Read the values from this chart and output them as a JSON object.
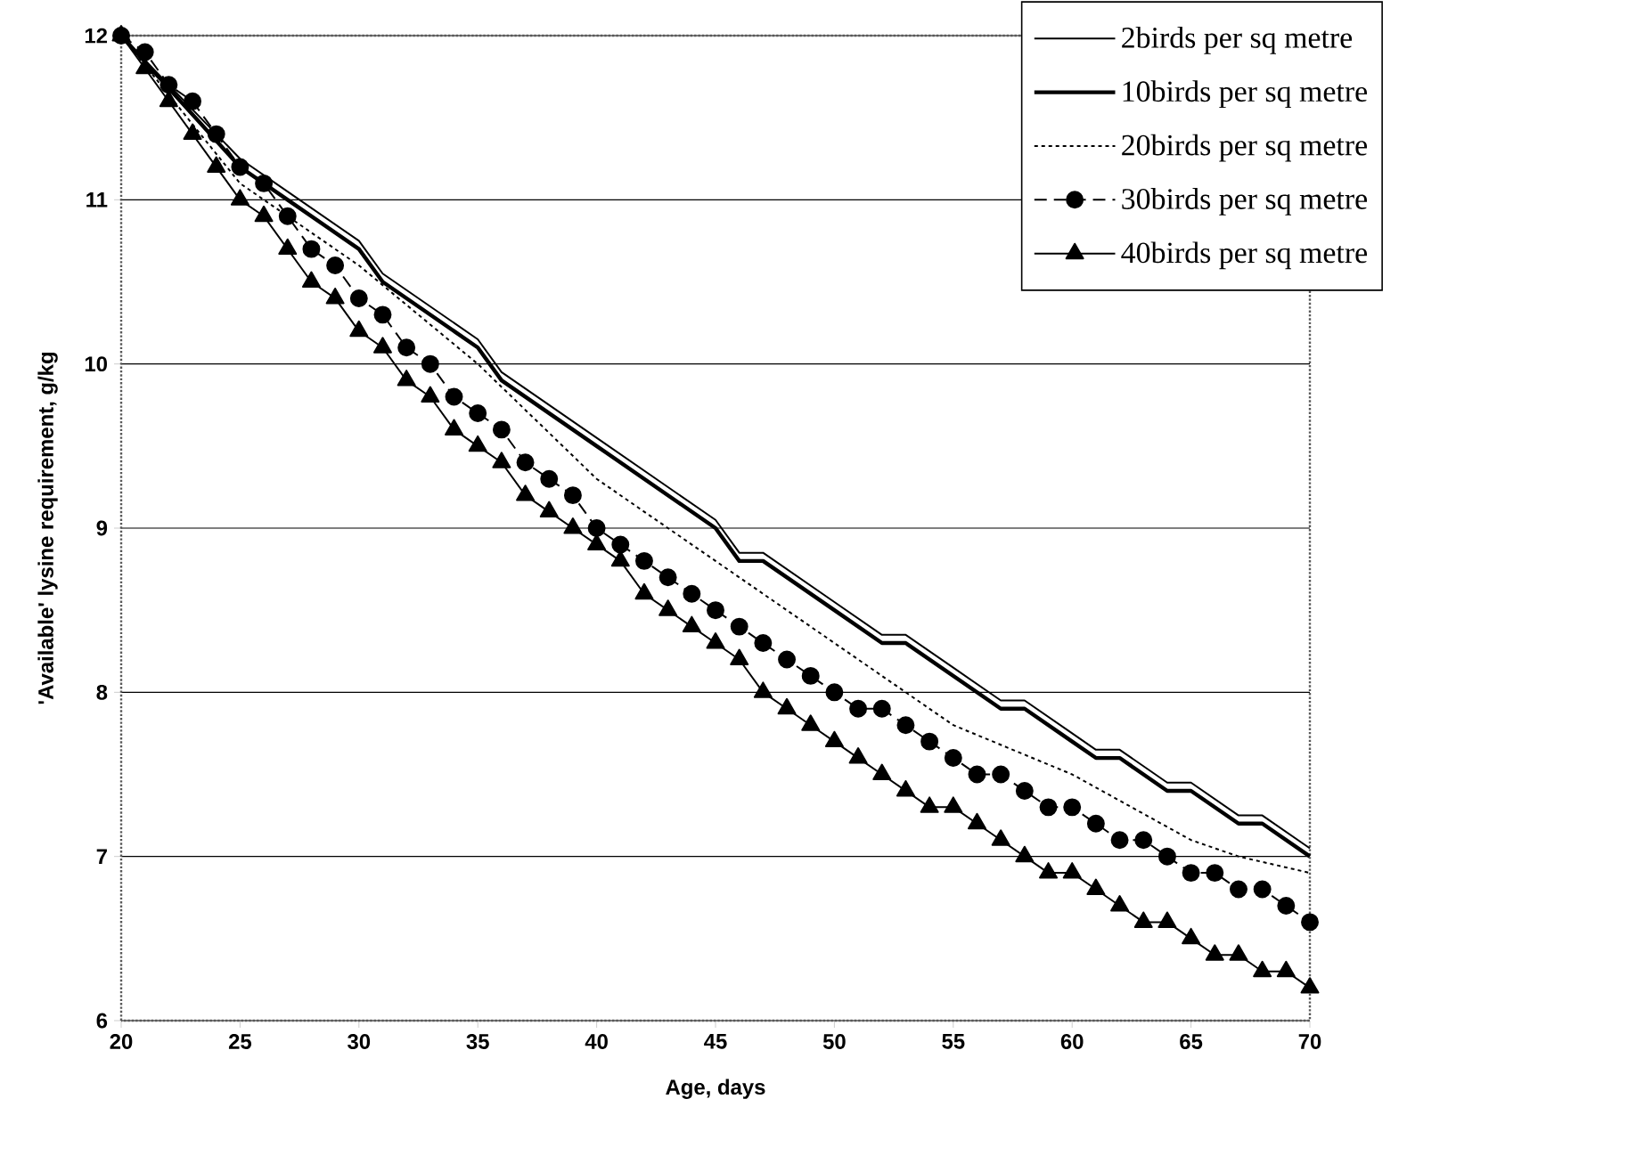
{
  "chart_data": {
    "type": "line",
    "xlabel": "Age, days",
    "ylabel": "'Available' lysine requirement, g/kg",
    "x": [
      20,
      21,
      22,
      23,
      24,
      25,
      26,
      27,
      28,
      29,
      30,
      31,
      32,
      33,
      34,
      35,
      36,
      37,
      38,
      39,
      40,
      41,
      42,
      43,
      44,
      45,
      46,
      47,
      48,
      49,
      50,
      51,
      52,
      53,
      54,
      55,
      56,
      57,
      58,
      59,
      60,
      61,
      62,
      63,
      64,
      65,
      66,
      67,
      68,
      69,
      70
    ],
    "xlim": [
      20,
      70
    ],
    "xticks": [
      20,
      25,
      30,
      35,
      40,
      45,
      50,
      55,
      60,
      65,
      70
    ],
    "ylim": [
      6,
      12
    ],
    "yticks": [
      6,
      7,
      8,
      9,
      10,
      11,
      12
    ],
    "grid": "y",
    "legend": "top right",
    "series": [
      {
        "name": "2birds per sq metre",
        "color": "#000000",
        "marker": "none",
        "line_style": "solid",
        "x": [
          20,
          25,
          27,
          30,
          31,
          35,
          36,
          40,
          45,
          46,
          47,
          50,
          52,
          53,
          55,
          57,
          58,
          60,
          61,
          62,
          64,
          65,
          67,
          68,
          70
        ],
        "values": [
          12.0,
          11.25,
          11.05,
          10.75,
          10.55,
          10.15,
          9.95,
          9.55,
          9.05,
          8.85,
          8.85,
          8.55,
          8.35,
          8.35,
          8.15,
          7.95,
          7.95,
          7.75,
          7.65,
          7.65,
          7.45,
          7.45,
          7.25,
          7.25,
          7.05
        ]
      },
      {
        "name": "10birds per sq metre",
        "color": "#000000",
        "marker": "none",
        "line_style": "solid",
        "x": [
          20,
          25,
          27,
          30,
          31,
          35,
          36,
          40,
          45,
          46,
          47,
          50,
          52,
          53,
          55,
          57,
          58,
          60,
          61,
          62,
          64,
          65,
          67,
          68,
          70
        ],
        "values": [
          12.0,
          11.2,
          11.0,
          10.7,
          10.5,
          10.1,
          9.9,
          9.5,
          9.0,
          8.8,
          8.8,
          8.5,
          8.3,
          8.3,
          8.1,
          7.9,
          7.9,
          7.7,
          7.6,
          7.6,
          7.4,
          7.4,
          7.2,
          7.2,
          7.0
        ]
      },
      {
        "name": "20birds per sq metre",
        "color": "#000000",
        "marker": "none",
        "line_style": "dotted",
        "x": [
          20,
          25,
          30,
          35,
          40,
          45,
          50,
          52,
          53,
          55,
          60,
          65,
          67,
          70
        ],
        "values": [
          12.0,
          11.1,
          10.6,
          10.0,
          9.3,
          8.8,
          8.3,
          8.1,
          8.0,
          7.8,
          7.5,
          7.1,
          7.0,
          6.9
        ]
      },
      {
        "name": "30birds per sq metre",
        "color": "#000000",
        "marker": "circle",
        "line_style": "dashed",
        "values": [
          12.0,
          11.9,
          11.7,
          11.6,
          11.4,
          11.2,
          11.1,
          10.9,
          10.7,
          10.6,
          10.4,
          10.3,
          10.1,
          10.0,
          9.8,
          9.7,
          9.6,
          9.4,
          9.3,
          9.2,
          9.0,
          8.9,
          8.8,
          8.7,
          8.6,
          8.5,
          8.4,
          8.3,
          8.2,
          8.1,
          8.0,
          7.9,
          7.9,
          7.8,
          7.7,
          7.6,
          7.5,
          7.5,
          7.4,
          7.3,
          7.3,
          7.2,
          7.1,
          7.1,
          7.0,
          6.9,
          6.9,
          6.8,
          6.8,
          6.7,
          6.6
        ]
      },
      {
        "name": "40birds per sq metre",
        "color": "#000000",
        "marker": "triangle",
        "line_style": "solid",
        "values": [
          12.0,
          11.8,
          11.6,
          11.4,
          11.2,
          11.0,
          10.9,
          10.7,
          10.5,
          10.4,
          10.2,
          10.1,
          9.9,
          9.8,
          9.6,
          9.5,
          9.4,
          9.2,
          9.1,
          9.0,
          8.9,
          8.8,
          8.6,
          8.5,
          8.4,
          8.3,
          8.2,
          8.0,
          7.9,
          7.8,
          7.7,
          7.6,
          7.5,
          7.4,
          7.3,
          7.3,
          7.2,
          7.1,
          7.0,
          6.9,
          6.9,
          6.8,
          6.7,
          6.6,
          6.6,
          6.5,
          6.4,
          6.4,
          6.3,
          6.3,
          6.2
        ]
      }
    ]
  }
}
